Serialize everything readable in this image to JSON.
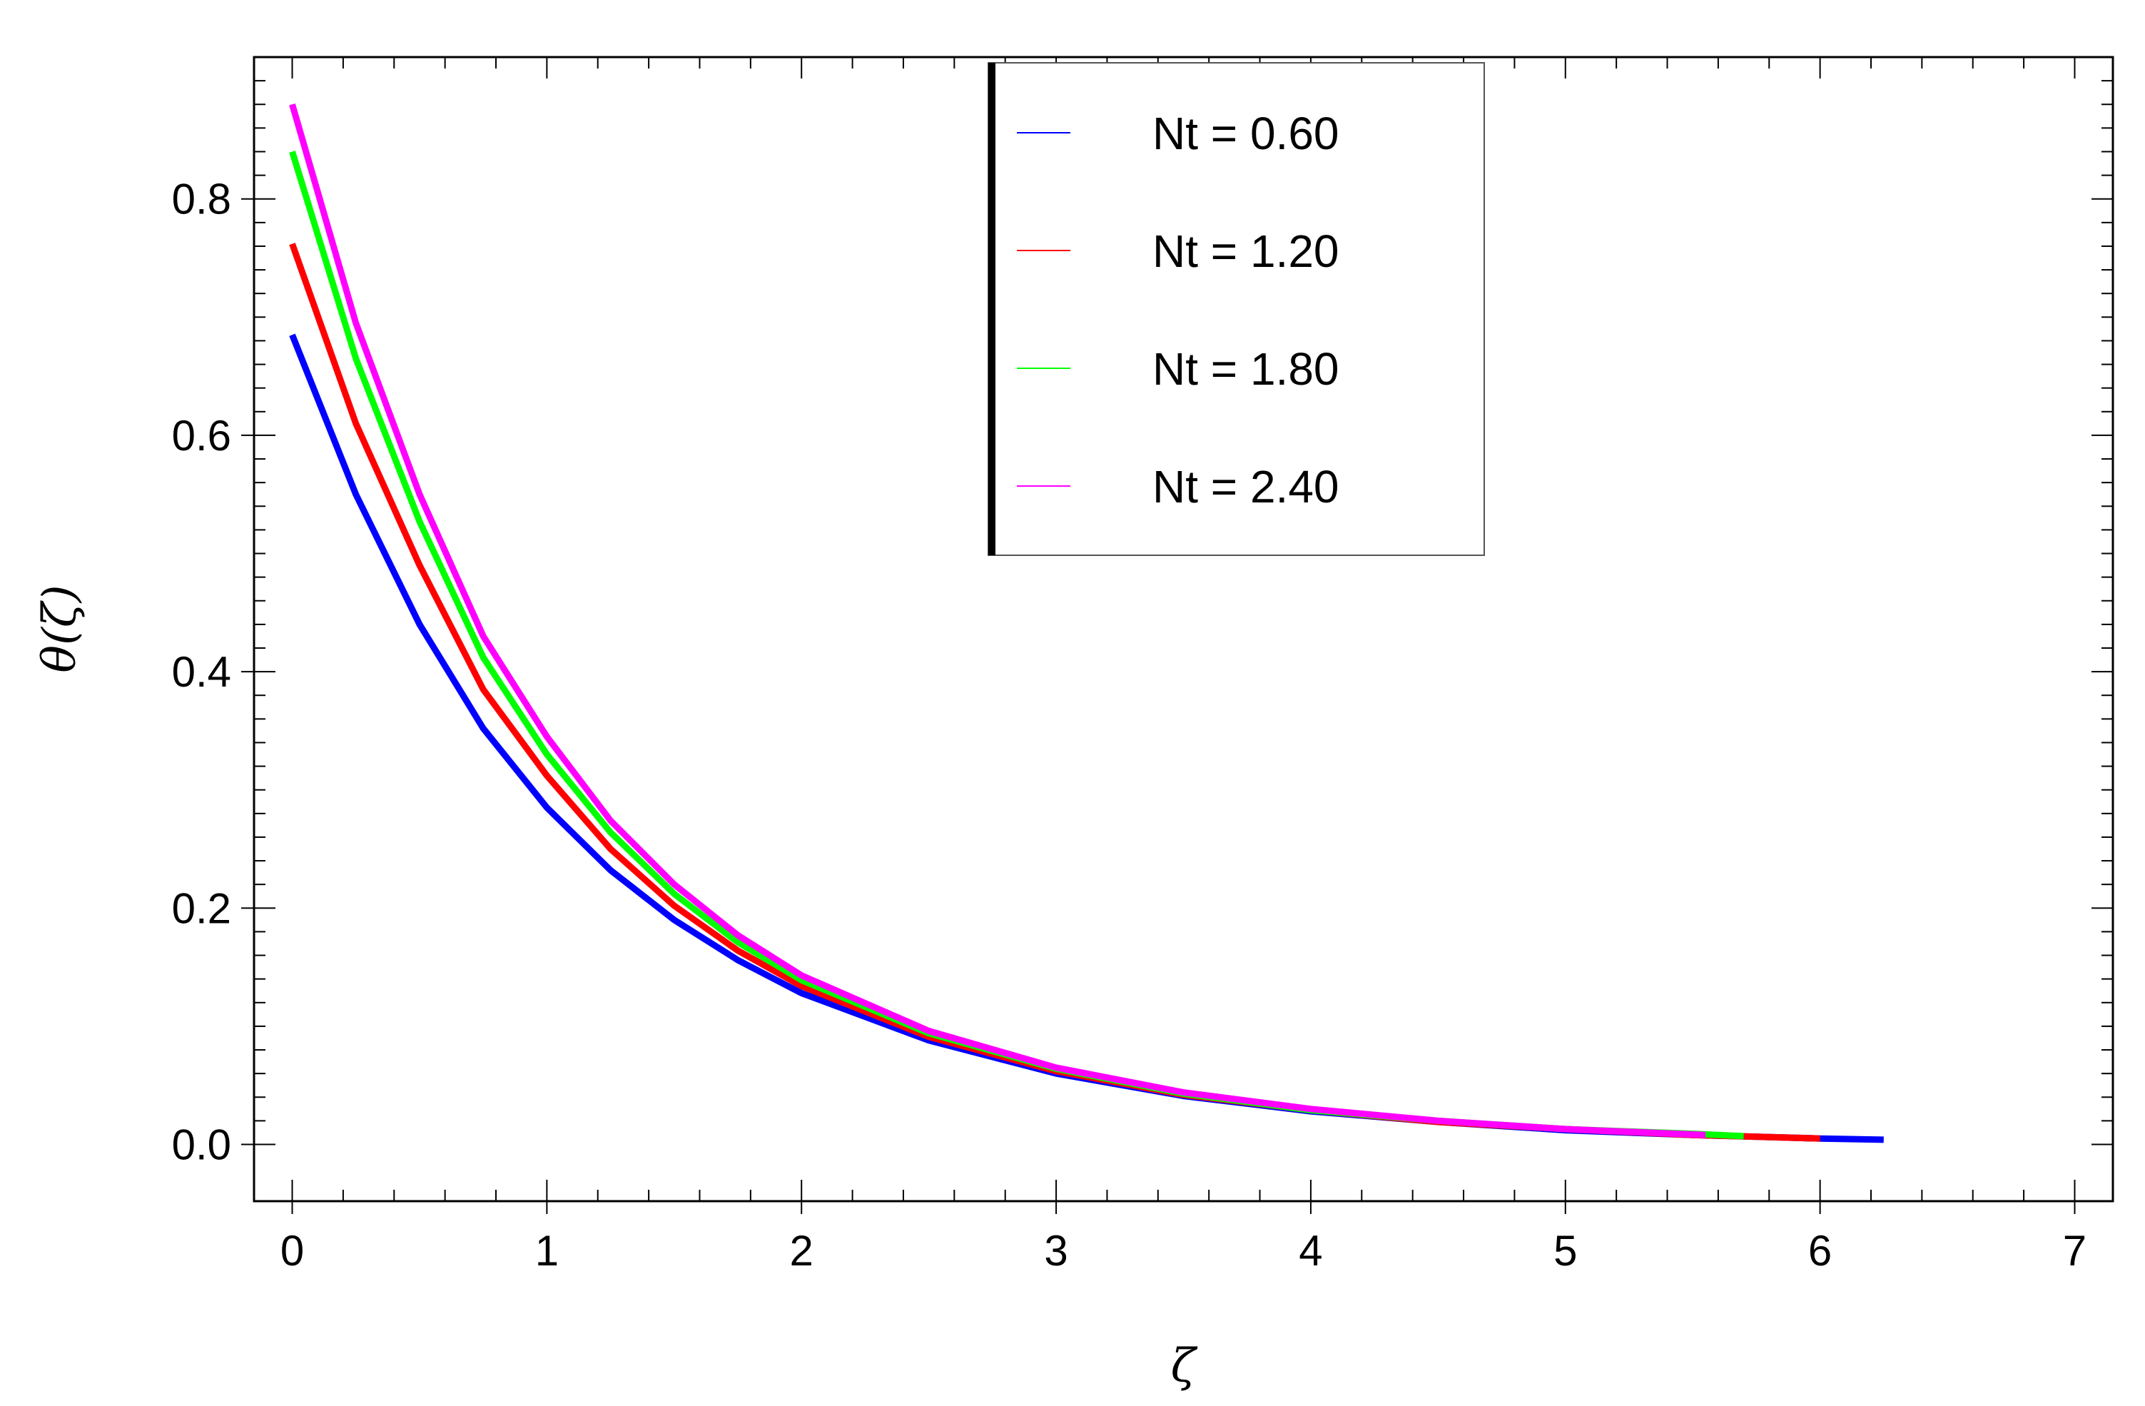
{
  "chart_data": {
    "type": "line",
    "xlabel": "ζ",
    "ylabel": "θ(ζ)",
    "xlim": [
      -0.15,
      7.15
    ],
    "ylim": [
      -0.048,
      0.92
    ],
    "xticks": [
      0,
      1,
      2,
      3,
      4,
      5,
      6,
      7
    ],
    "xtick_labels": [
      "0",
      "1",
      "2",
      "3",
      "4",
      "5",
      "6",
      "7"
    ],
    "yticks": [
      0.0,
      0.2,
      0.4,
      0.6,
      0.8
    ],
    "ytick_labels": [
      "0.0",
      "0.2",
      "0.4",
      "0.6",
      "0.8"
    ],
    "grid": false,
    "legend_position": "top-center",
    "series": [
      {
        "name": "Nt = 0.60",
        "color": "#0000ff",
        "x": [
          0,
          0.25,
          0.5,
          0.75,
          1.0,
          1.25,
          1.5,
          1.75,
          2.0,
          2.5,
          3.0,
          3.5,
          4.0,
          4.5,
          5.0,
          5.5,
          6.0,
          6.25
        ],
        "y": [
          0.685,
          0.55,
          0.44,
          0.352,
          0.285,
          0.232,
          0.19,
          0.156,
          0.128,
          0.088,
          0.06,
          0.041,
          0.028,
          0.019,
          0.012,
          0.008,
          0.005,
          0.004
        ]
      },
      {
        "name": "Nt = 1.20",
        "color": "#ff0000",
        "x": [
          0,
          0.25,
          0.5,
          0.75,
          1.0,
          1.25,
          1.5,
          1.75,
          2.0,
          2.5,
          3.0,
          3.5,
          4.0,
          4.5,
          5.0,
          5.5,
          6.0
        ],
        "y": [
          0.762,
          0.61,
          0.49,
          0.385,
          0.312,
          0.25,
          0.202,
          0.164,
          0.134,
          0.091,
          0.062,
          0.042,
          0.029,
          0.019,
          0.013,
          0.008,
          0.005
        ]
      },
      {
        "name": "Nt = 1.80",
        "color": "#00ff00",
        "x": [
          0,
          0.25,
          0.5,
          0.75,
          1.0,
          1.25,
          1.5,
          1.75,
          2.0,
          2.5,
          3.0,
          3.5,
          4.0,
          4.5,
          5.0,
          5.5,
          5.7
        ],
        "y": [
          0.84,
          0.665,
          0.527,
          0.412,
          0.33,
          0.264,
          0.212,
          0.171,
          0.139,
          0.094,
          0.064,
          0.043,
          0.029,
          0.02,
          0.013,
          0.009,
          0.007
        ]
      },
      {
        "name": "Nt = 2.40",
        "color": "#ff00ff",
        "x": [
          0,
          0.25,
          0.5,
          0.75,
          1.0,
          1.25,
          1.5,
          1.75,
          2.0,
          2.5,
          3.0,
          3.5,
          4.0,
          4.5,
          5.0,
          5.55
        ],
        "y": [
          0.88,
          0.695,
          0.55,
          0.43,
          0.345,
          0.274,
          0.22,
          0.177,
          0.143,
          0.096,
          0.065,
          0.044,
          0.03,
          0.02,
          0.013,
          0.008
        ]
      }
    ]
  }
}
